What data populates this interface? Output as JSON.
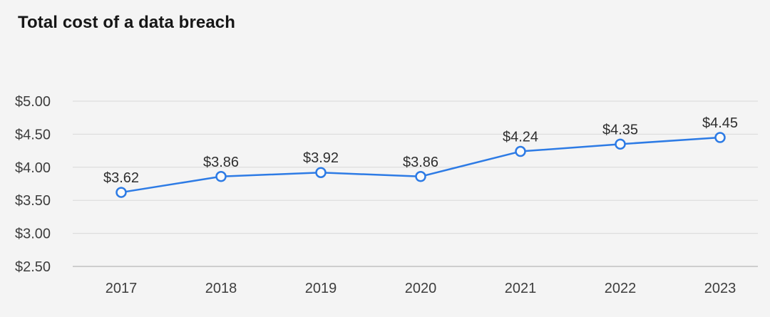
{
  "chart_data": {
    "type": "line",
    "title": "Total cost of a data breach",
    "categories": [
      "2017",
      "2018",
      "2019",
      "2020",
      "2021",
      "2022",
      "2023"
    ],
    "series": [
      {
        "name": "Total cost of a data breach",
        "values": [
          3.62,
          3.86,
          3.92,
          3.86,
          4.24,
          4.35,
          4.45
        ],
        "point_labels": [
          "$3.62",
          "$3.86",
          "$3.92",
          "$3.86",
          "$4.24",
          "$4.35",
          "$4.45"
        ]
      }
    ],
    "ylim": [
      2.5,
      5.0
    ],
    "y_tick_step": 0.5,
    "y_tick_labels": [
      "$2.50",
      "$3.00",
      "$3.50",
      "$4.00",
      "$4.50",
      "$5.00"
    ],
    "xlabel": "",
    "ylabel": "",
    "grid": "horizontal",
    "legend": "none",
    "colors": {
      "background": "#f4f4f4",
      "line": "#2d7be5",
      "marker_fill": "#fafafa",
      "marker_stroke": "#2d7be5",
      "gridline": "#d8d8d8",
      "axis_line": "#c0c0c0",
      "title_text": "#161616",
      "tick_text": "#3d3d3d",
      "label_text": "#2e2e2e"
    }
  }
}
